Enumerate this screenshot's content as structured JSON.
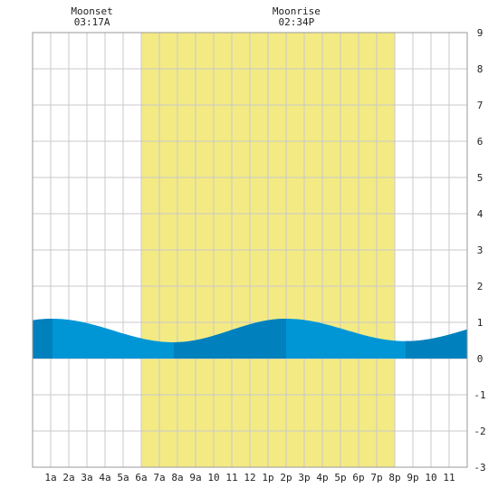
{
  "chart_data": {
    "type": "area",
    "title": "",
    "xlabel": "",
    "ylabel": "",
    "x_range": [
      0,
      24
    ],
    "ylim": [
      -3,
      9
    ],
    "y_ticks": [
      9,
      8,
      7,
      6,
      5,
      4,
      3,
      2,
      1,
      0,
      -1,
      -2,
      -3
    ],
    "x_ticks": [
      {
        "hour": 1,
        "label": "1a"
      },
      {
        "hour": 2,
        "label": "2a"
      },
      {
        "hour": 3,
        "label": "3a"
      },
      {
        "hour": 4,
        "label": "4a"
      },
      {
        "hour": 5,
        "label": "5a"
      },
      {
        "hour": 6,
        "label": "6a"
      },
      {
        "hour": 7,
        "label": "7a"
      },
      {
        "hour": 8,
        "label": "8a"
      },
      {
        "hour": 9,
        "label": "9a"
      },
      {
        "hour": 10,
        "label": "10"
      },
      {
        "hour": 11,
        "label": "11"
      },
      {
        "hour": 12,
        "label": "12"
      },
      {
        "hour": 13,
        "label": "1p"
      },
      {
        "hour": 14,
        "label": "2p"
      },
      {
        "hour": 15,
        "label": "3p"
      },
      {
        "hour": 16,
        "label": "4p"
      },
      {
        "hour": 17,
        "label": "5p"
      },
      {
        "hour": 18,
        "label": "6p"
      },
      {
        "hour": 19,
        "label": "7p"
      },
      {
        "hour": 20,
        "label": "8p"
      },
      {
        "hour": 21,
        "label": "9p"
      },
      {
        "hour": 22,
        "label": "10"
      },
      {
        "hour": 23,
        "label": "11"
      }
    ],
    "daylight": {
      "start": 6,
      "end": 20
    },
    "events": [
      {
        "name": "Moonset",
        "time": "03:17A",
        "hour": 3.28
      },
      {
        "name": "Moonrise",
        "time": "02:34P",
        "hour": 14.57
      }
    ],
    "tide_extremes": [
      {
        "type": "high",
        "hour": 1.1,
        "height": 1.1
      },
      {
        "type": "low",
        "hour": 7.8,
        "height": 0.45
      },
      {
        "type": "high",
        "hour": 14.0,
        "height": 1.1
      },
      {
        "type": "low",
        "hour": 20.6,
        "height": 0.48
      }
    ],
    "tide_start_height": 1.07,
    "tide_end_height": 1.0,
    "dark_bands": [
      [
        0,
        1.1
      ],
      [
        7.8,
        14.0
      ],
      [
        20.6,
        24
      ]
    ],
    "grid": true,
    "colors": {
      "daylight": "#f3ea84",
      "tide_light": "#0096d6",
      "tide_dark": "#0080bd",
      "grid": "#c8c8c8"
    }
  }
}
